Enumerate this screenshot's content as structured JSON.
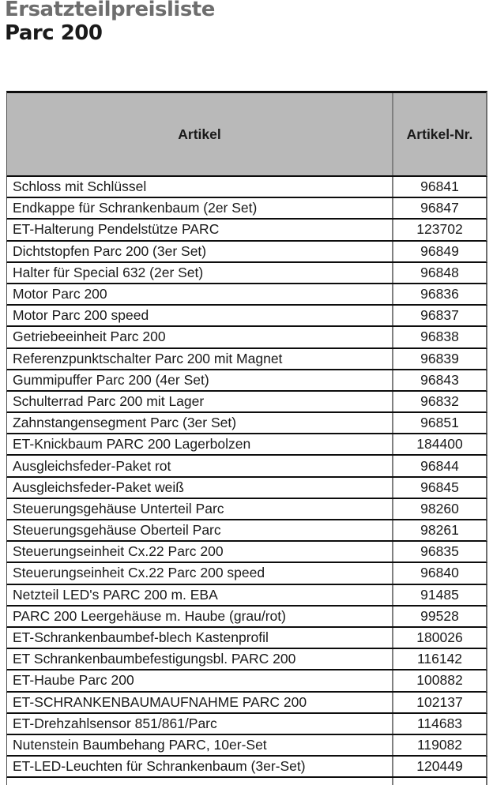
{
  "document": {
    "title": "Ersatzteilpreisliste",
    "subtitle": "Parc 200"
  },
  "table": {
    "headers": {
      "artikel": "Artikel",
      "nr": "Artikel-Nr."
    },
    "rows": [
      {
        "artikel": "Schloss mit Schlüssel",
        "nr": "96841"
      },
      {
        "artikel": "Endkappe für Schrankenbaum (2er Set)",
        "nr": "96847"
      },
      {
        "artikel": "ET-Halterung Pendelstütze PARC",
        "nr": "123702"
      },
      {
        "artikel": "Dichtstopfen Parc 200 (3er Set)",
        "nr": "96849"
      },
      {
        "artikel": "Halter für Special 632 (2er Set)",
        "nr": "96848"
      },
      {
        "artikel": "Motor Parc 200",
        "nr": "96836"
      },
      {
        "artikel": "Motor Parc 200 speed",
        "nr": "96837"
      },
      {
        "artikel": "Getriebeeinheit Parc 200",
        "nr": "96838"
      },
      {
        "artikel": "Referenzpunktschalter Parc 200 mit Magnet",
        "nr": "96839"
      },
      {
        "artikel": "Gummipuffer Parc 200 (4er Set)",
        "nr": "96843"
      },
      {
        "artikel": "Schulterrad Parc 200 mit Lager",
        "nr": "96832"
      },
      {
        "artikel": "Zahnstangensegment Parc (3er Set)",
        "nr": "96851"
      },
      {
        "artikel": "ET-Knickbaum PARC 200 Lagerbolzen",
        "nr": "184400"
      },
      {
        "artikel": "Ausgleichsfeder-Paket rot",
        "nr": "96844"
      },
      {
        "artikel": "Ausgleichsfeder-Paket weiß",
        "nr": "96845"
      },
      {
        "artikel": "Steuerungsgehäuse Unterteil Parc",
        "nr": "98260"
      },
      {
        "artikel": "Steuerungsgehäuse Oberteil Parc",
        "nr": "98261"
      },
      {
        "artikel": "Steuerungseinheit Cx.22 Parc 200",
        "nr": "96835"
      },
      {
        "artikel": "Steuerungseinheit Cx.22 Parc 200 speed",
        "nr": "96840"
      },
      {
        "artikel": "Netzteil LED's PARC 200 m. EBA",
        "nr": "91485"
      },
      {
        "artikel": "PARC 200 Leergehäuse m. Haube (grau/rot)",
        "nr": "99528"
      },
      {
        "artikel": "ET-Schrankenbaumbef-blech Kastenprofil",
        "nr": "180026"
      },
      {
        "artikel": "ET Schrankenbaumbefestigungsbl. PARC 200",
        "nr": "116142"
      },
      {
        "artikel": "ET-Haube Parc 200",
        "nr": "100882"
      },
      {
        "artikel": "ET-SCHRANKENBAUMAUFNAHME PARC 200",
        "nr": "102137"
      },
      {
        "artikel": "ET-Drehzahlsensor 851/861/Parc",
        "nr": "114683"
      },
      {
        "artikel": "Nutenstein Baumbehang PARC, 10er-Set",
        "nr": "119082"
      },
      {
        "artikel": "ET-LED-Leuchten für Schrankenbaum (3er-Set)",
        "nr": "120449"
      }
    ]
  },
  "colors": {
    "title": "#6e6e6e",
    "subtitle": "#1a1a1a",
    "text": "#1a1a1a",
    "header_bg": "#b9b9b9",
    "row_border": "#0d0d0d",
    "column_divider": "#808080"
  }
}
